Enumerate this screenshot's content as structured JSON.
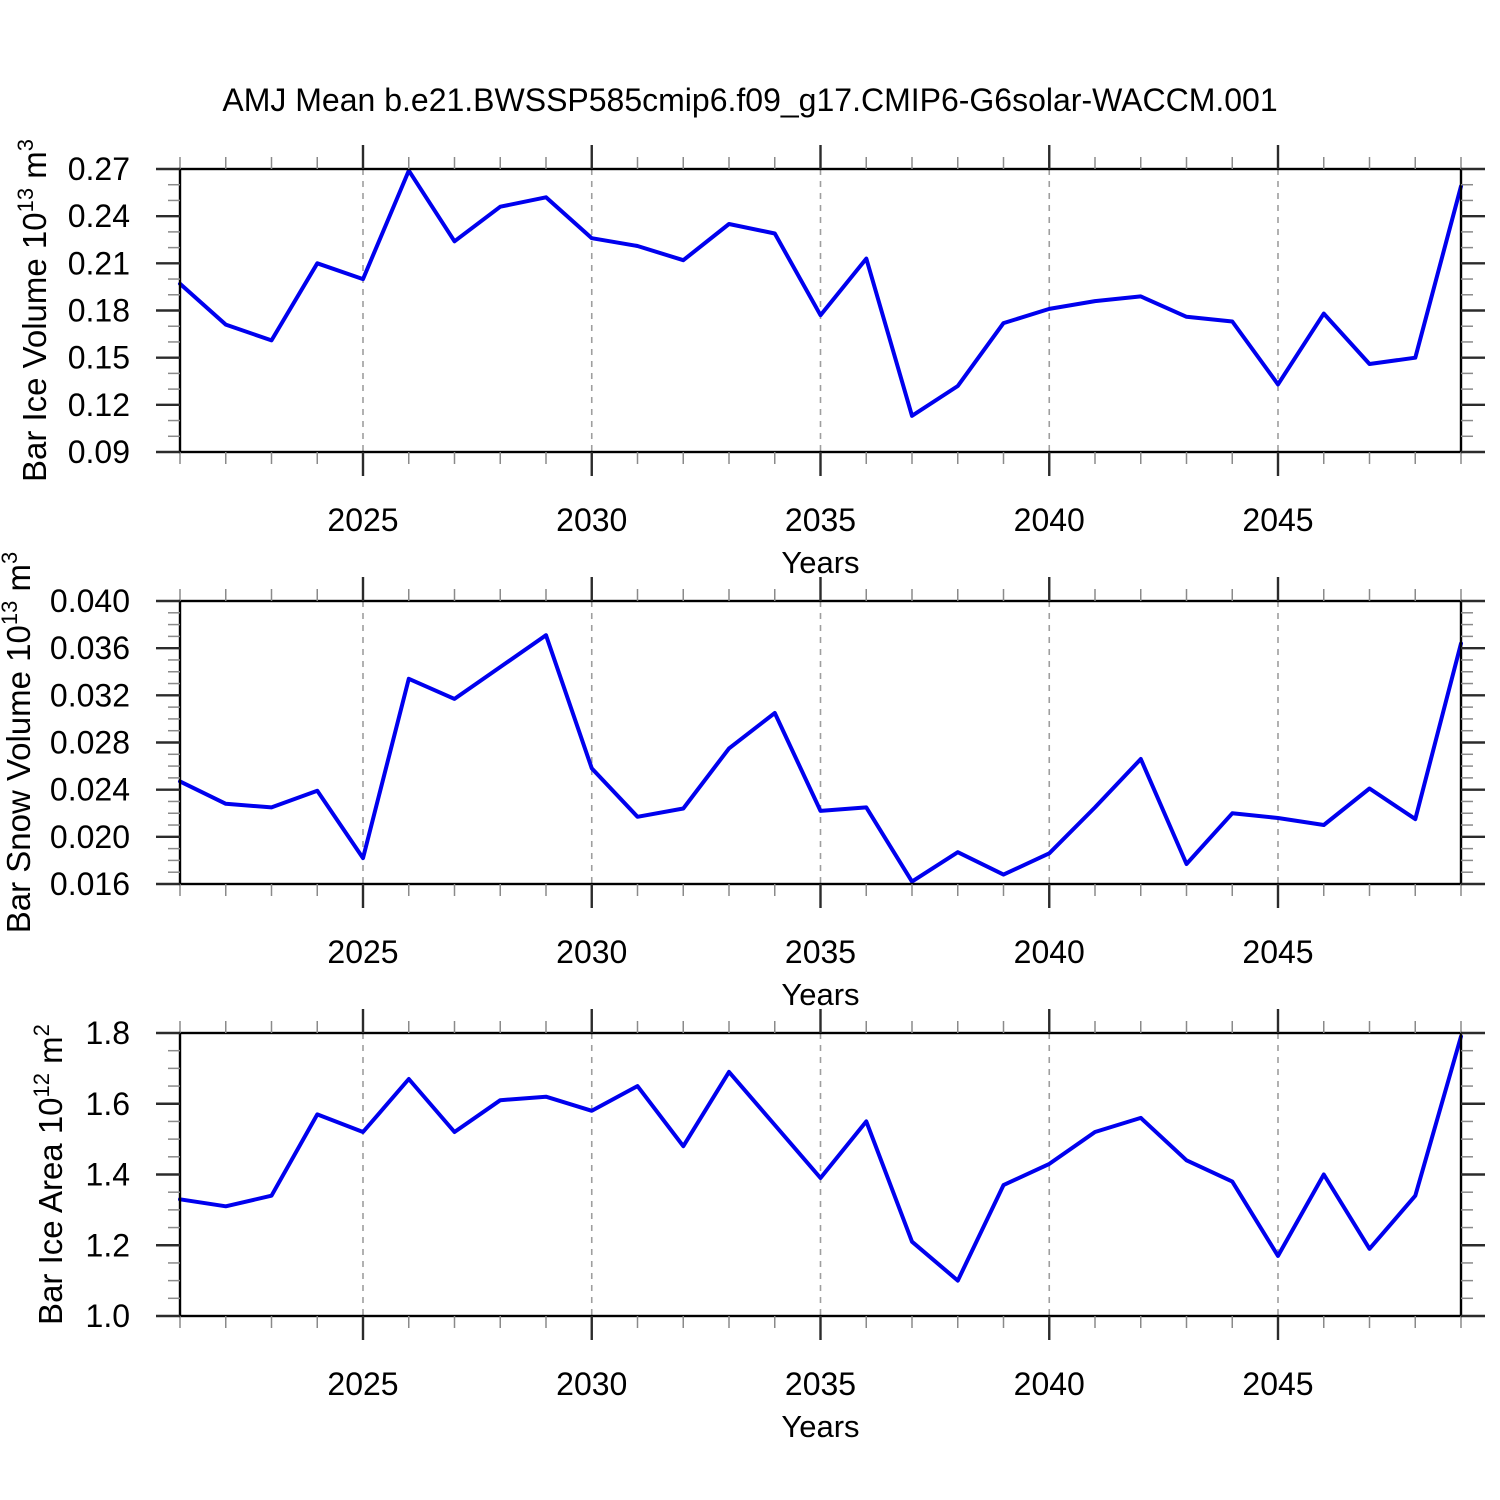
{
  "title": "AMJ Mean b.e21.BWSSP585cmip6.f09_g17.CMIP6-G6solar-WACCM.001",
  "colors": {
    "background": "#ffffff",
    "line": "#0000EE",
    "grid": "#9e9e9e",
    "axis": "#000000",
    "tick_major": "#2b2b2b",
    "tick_minor": "#8a8a8a",
    "text": "#000000"
  },
  "chart_data": [
    {
      "type": "line",
      "id": "ice-volume",
      "ylabel": "Bar Ice Volume 10^13 m^3",
      "ylabel_parts": [
        {
          "t": "Bar Ice Volume 10"
        },
        {
          "t": "13",
          "sup": true
        },
        {
          "t": " m"
        },
        {
          "t": "3",
          "sup": true
        }
      ],
      "xlabel": "Years",
      "xlim": [
        2021,
        2049
      ],
      "ylim": [
        0.09,
        0.27
      ],
      "xticks": [
        2025,
        2030,
        2035,
        2040,
        2045
      ],
      "x_minor_step": 1,
      "yticks": [
        0.09,
        0.12,
        0.15,
        0.18,
        0.21,
        0.24,
        0.27
      ],
      "ytick_labels": [
        "0.09",
        "0.12",
        "0.15",
        "0.18",
        "0.21",
        "0.24",
        "0.27"
      ],
      "y_minor_step": 0.01,
      "grid": "vertical-dashed",
      "x": [
        2021,
        2022,
        2023,
        2024,
        2025,
        2026,
        2027,
        2028,
        2029,
        2030,
        2031,
        2032,
        2033,
        2034,
        2035,
        2036,
        2037,
        2038,
        2039,
        2040,
        2041,
        2042,
        2043,
        2044,
        2045,
        2046,
        2047,
        2048,
        2049
      ],
      "values": [
        0.197,
        0.171,
        0.161,
        0.21,
        0.2,
        0.269,
        0.224,
        0.246,
        0.252,
        0.226,
        0.221,
        0.212,
        0.235,
        0.229,
        0.177,
        0.213,
        0.113,
        0.132,
        0.172,
        0.181,
        0.186,
        0.189,
        0.176,
        0.173,
        0.133,
        0.178,
        0.146,
        0.15,
        0.259
      ]
    },
    {
      "type": "line",
      "id": "snow-volume",
      "ylabel": "Bar Snow Volume 10^13 m^3",
      "ylabel_parts": [
        {
          "t": "Bar Snow Volume 10"
        },
        {
          "t": "13",
          "sup": true
        },
        {
          "t": " m"
        },
        {
          "t": "3",
          "sup": true
        }
      ],
      "xlabel": "Years",
      "xlim": [
        2021,
        2049
      ],
      "ylim": [
        0.016,
        0.04
      ],
      "xticks": [
        2025,
        2030,
        2035,
        2040,
        2045
      ],
      "x_minor_step": 1,
      "yticks": [
        0.016,
        0.02,
        0.024,
        0.028,
        0.032,
        0.036,
        0.04
      ],
      "ytick_labels": [
        "0.016",
        "0.020",
        "0.024",
        "0.028",
        "0.032",
        "0.036",
        "0.040"
      ],
      "y_minor_step": 0.001,
      "grid": "vertical-dashed",
      "x": [
        2021,
        2022,
        2023,
        2024,
        2025,
        2026,
        2027,
        2028,
        2029,
        2030,
        2031,
        2032,
        2033,
        2034,
        2035,
        2036,
        2037,
        2038,
        2039,
        2040,
        2041,
        2042,
        2043,
        2044,
        2045,
        2046,
        2047,
        2048,
        2049
      ],
      "values": [
        0.0247,
        0.0228,
        0.0225,
        0.0239,
        0.0182,
        0.0334,
        0.0317,
        0.0344,
        0.0371,
        0.0258,
        0.0217,
        0.0224,
        0.0275,
        0.0305,
        0.0222,
        0.0225,
        0.0162,
        0.0187,
        0.0168,
        0.0186,
        0.0225,
        0.0266,
        0.0177,
        0.022,
        0.0216,
        0.021,
        0.0241,
        0.0215,
        0.0364
      ]
    },
    {
      "type": "line",
      "id": "ice-area",
      "ylabel": "Bar Ice Area 10^12 m^2",
      "ylabel_parts": [
        {
          "t": "Bar Ice Area 10"
        },
        {
          "t": "12",
          "sup": true
        },
        {
          "t": " m"
        },
        {
          "t": "2",
          "sup": true
        }
      ],
      "xlabel": "Years",
      "xlim": [
        2021,
        2049
      ],
      "ylim": [
        1.0,
        1.8
      ],
      "xticks": [
        2025,
        2030,
        2035,
        2040,
        2045
      ],
      "x_minor_step": 1,
      "yticks": [
        1.0,
        1.2,
        1.4,
        1.6,
        1.8
      ],
      "ytick_labels": [
        "1.0",
        "1.2",
        "1.4",
        "1.6",
        "1.8"
      ],
      "y_minor_step": 0.05,
      "grid": "vertical-dashed",
      "x": [
        2021,
        2022,
        2023,
        2024,
        2025,
        2026,
        2027,
        2028,
        2029,
        2030,
        2031,
        2032,
        2033,
        2034,
        2035,
        2036,
        2037,
        2038,
        2039,
        2040,
        2041,
        2042,
        2043,
        2044,
        2045,
        2046,
        2047,
        2048,
        2049
      ],
      "values": [
        1.33,
        1.31,
        1.34,
        1.57,
        1.52,
        1.67,
        1.52,
        1.61,
        1.62,
        1.58,
        1.65,
        1.48,
        1.69,
        1.54,
        1.39,
        1.55,
        1.21,
        1.1,
        1.37,
        1.43,
        1.52,
        1.56,
        1.44,
        1.38,
        1.17,
        1.4,
        1.19,
        1.34,
        1.79
      ]
    }
  ]
}
